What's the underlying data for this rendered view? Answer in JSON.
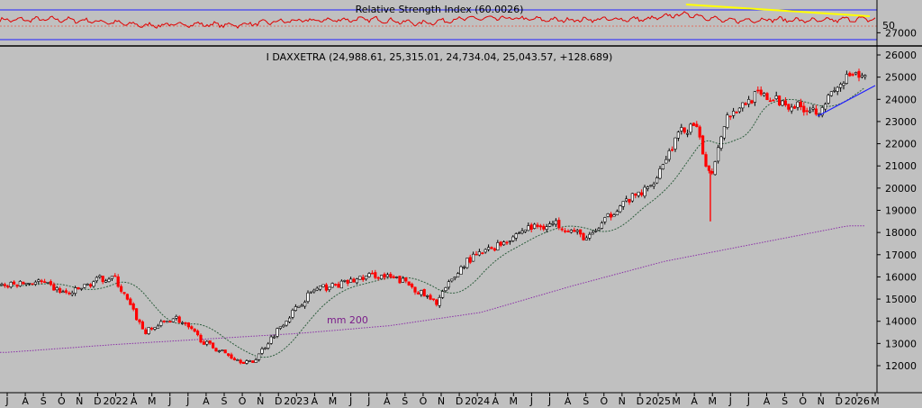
{
  "chart_data": [
    {
      "type": "line",
      "title": "Relative Strength Index (60.0026)",
      "ylim": [
        0,
        100
      ],
      "y_ticks": [
        "50"
      ],
      "colors": {
        "rsi": "#e00000",
        "bands": "#2020ff",
        "trendline": "#ffff00",
        "midline": "#e07060"
      },
      "series": [
        {
          "name": "",
          "x": [
            "2021-06",
            "2021-09",
            "2021-12",
            "2022-03",
            "2022-06",
            "2022-09",
            "2022-12",
            "2023-03",
            "2023-06",
            "2023-09",
            "2023-12",
            "2024-03",
            "2024-06",
            "2024-09",
            "2024-12",
            "2025-02",
            "2025-03",
            "2025-05",
            "2025-08",
            "2025-11",
            "2026-01"
          ],
          "values": [
            58,
            60,
            55,
            45,
            48,
            46,
            55,
            58,
            60,
            50,
            62,
            62,
            58,
            60,
            60,
            72,
            70,
            56,
            60,
            56,
            60
          ]
        }
      ]
    },
    {
      "type": "line",
      "title": "I DAXXETRA (24,988.61, 25,315.01, 24,734.04, 25,043.57, +128.689)",
      "y_ticks": [
        "27000",
        "26000",
        "25000",
        "24000",
        "23000",
        "22000",
        "21000",
        "20000",
        "19000",
        "18000",
        "17000",
        "16000",
        "15000",
        "14000",
        "13000",
        "12000"
      ],
      "x_ticks": [
        "J",
        "A",
        "S",
        "O",
        "N",
        "D",
        "2022",
        "A",
        "M",
        "J",
        "J",
        "A",
        "S",
        "O",
        "N",
        "D",
        "2023",
        "A",
        "M",
        "J",
        "J",
        "A",
        "S",
        "O",
        "N",
        "D",
        "2024",
        "A",
        "M",
        "J",
        "J",
        "A",
        "S",
        "O",
        "N",
        "D",
        "2025",
        "M",
        "A",
        "M",
        "J",
        "J",
        "A",
        "S",
        "O",
        "N",
        "D",
        "2026",
        "M"
      ],
      "ylim": [
        11500,
        27300
      ],
      "annotations": [
        "mm 200"
      ],
      "colors": {
        "up": "#ffffff",
        "down": "#ff0000",
        "ma_short": "#2e5e3e",
        "ma_200": "#8b2fa8",
        "trendline": "#2020ff"
      },
      "series": [
        {
          "name": "",
          "x": [
            "2021-06",
            "2021-08",
            "2021-10",
            "2021-12",
            "2022-01",
            "2022-03",
            "2022-05",
            "2022-07",
            "2022-09",
            "2022-10",
            "2022-12",
            "2023-02",
            "2023-04",
            "2023-06",
            "2023-08",
            "2023-10",
            "2023-12",
            "2024-02",
            "2024-04",
            "2024-06",
            "2024-08",
            "2024-10",
            "2024-12",
            "2025-02",
            "2025-03",
            "2025-04",
            "2025-05",
            "2025-07",
            "2025-09",
            "2025-11",
            "2026-01"
          ],
          "values": [
            15600,
            15800,
            15200,
            15900,
            16000,
            13500,
            14200,
            13000,
            12300,
            12100,
            13900,
            15400,
            15700,
            16100,
            15800,
            14800,
            16700,
            17400,
            18200,
            18400,
            17700,
            19200,
            20000,
            22500,
            22800,
            20500,
            23200,
            24200,
            23800,
            23500,
            25000
          ]
        },
        {
          "name": "mm 200",
          "x": [
            "2021-06",
            "2022-01",
            "2022-07",
            "2023-01",
            "2023-07",
            "2024-01",
            "2024-07",
            "2025-01",
            "2025-07",
            "2026-01"
          ],
          "values": [
            12600,
            12950,
            13200,
            13450,
            13800,
            14400,
            15600,
            16700,
            17500,
            18300
          ]
        }
      ]
    }
  ]
}
